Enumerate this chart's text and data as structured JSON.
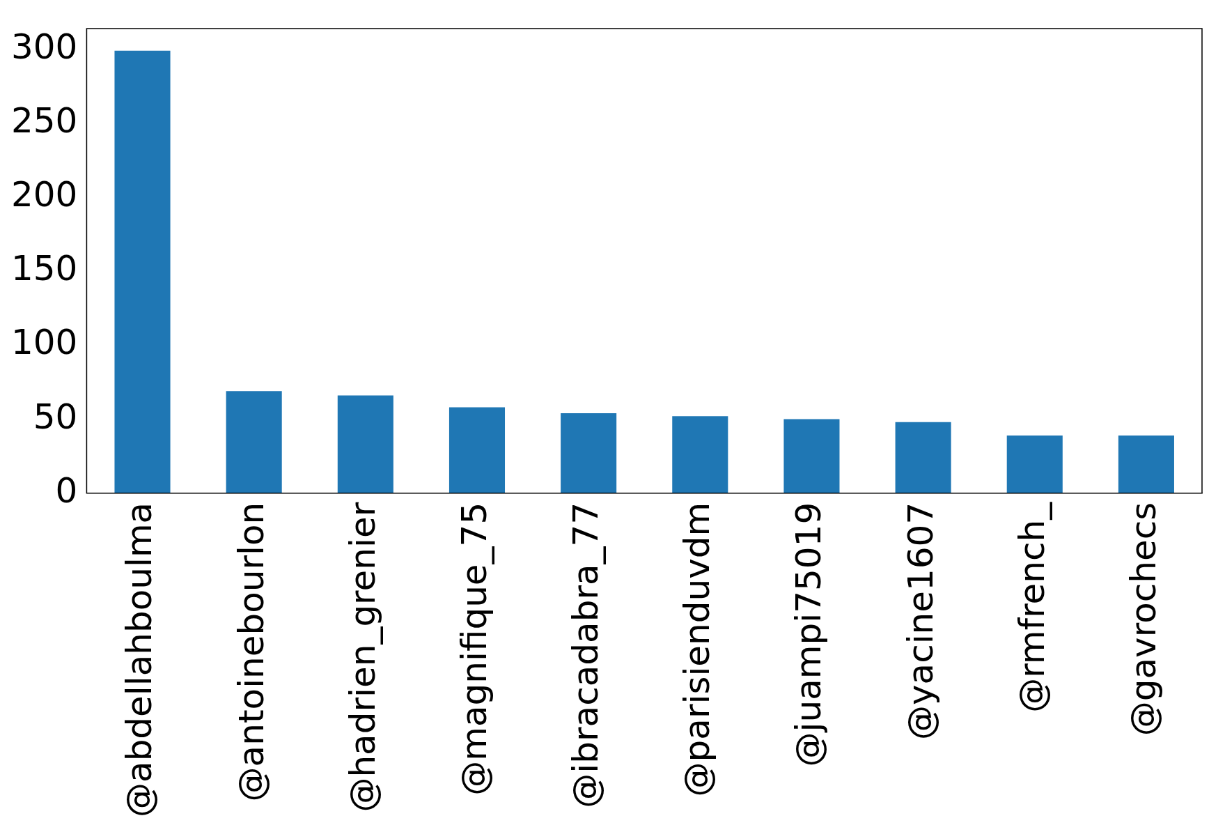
{
  "chart_data": {
    "type": "bar",
    "categories": [
      "@abdellahboulma",
      "@antoinebourlon",
      "@hadrien_grenier",
      "@magnifique_75",
      "@ibracadabra_77",
      "@parisienduvdm",
      "@juampi75019",
      "@yacine1607",
      "@rmfrench_",
      "@gavrochecs"
    ],
    "values": [
      299,
      69,
      66,
      58,
      54,
      52,
      50,
      48,
      39,
      39
    ],
    "color": "#1f77b4",
    "ylim": [
      0,
      314
    ],
    "yticks": [
      0,
      50,
      100,
      150,
      200,
      250,
      300
    ],
    "grid": false,
    "legend": false
  }
}
